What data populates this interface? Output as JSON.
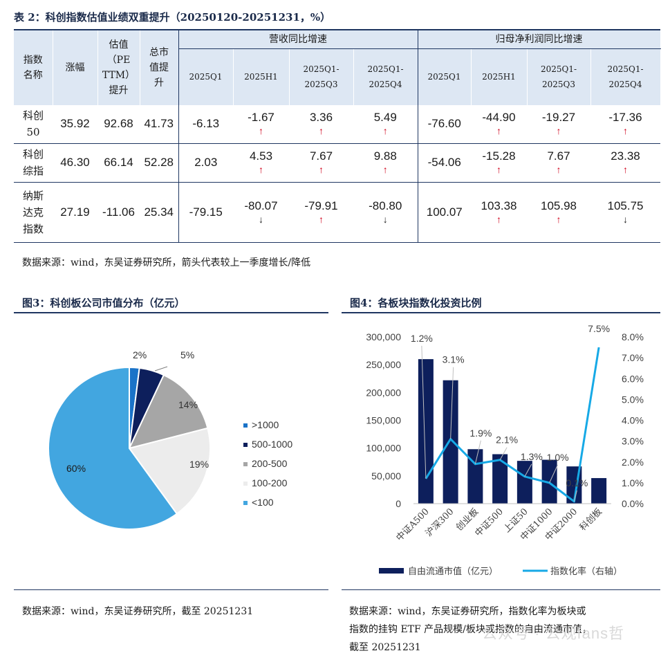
{
  "table": {
    "title": "表 2：科创指数估值业绩双重提升（20250120-20251231，%）",
    "headers": {
      "name": [
        "指数",
        "名称"
      ],
      "change": "涨幅",
      "pe": [
        "估值",
        "（PE",
        "TTM）",
        "提升"
      ],
      "mcap": [
        "总市",
        "值提",
        "升"
      ],
      "revenue_group": "营收同比增速",
      "profit_group": "归母净利润同比增速",
      "sub": [
        [
          "2025Q1"
        ],
        [
          "2025H1"
        ],
        [
          "2025Q1-",
          "2025Q3"
        ],
        [
          "2025Q1-",
          "2025Q4"
        ]
      ]
    },
    "rows": [
      {
        "name": [
          "科创",
          "50"
        ],
        "change": "35.92",
        "pe": "92.68",
        "mcap": "41.73",
        "rev": [
          {
            "v": "-6.13",
            "a": ""
          },
          {
            "v": "-1.67",
            "a": "↑"
          },
          {
            "v": "3.36",
            "a": "↑"
          },
          {
            "v": "5.49",
            "a": "↑"
          }
        ],
        "prof": [
          {
            "v": "-76.60",
            "a": ""
          },
          {
            "v": "-44.90",
            "a": "↑"
          },
          {
            "v": "-19.27",
            "a": "↑"
          },
          {
            "v": "-17.36",
            "a": "↑"
          }
        ]
      },
      {
        "name": [
          "科创",
          "综指"
        ],
        "change": "46.30",
        "pe": "66.14",
        "mcap": "52.28",
        "rev": [
          {
            "v": "2.03",
            "a": ""
          },
          {
            "v": "4.53",
            "a": "↑"
          },
          {
            "v": "7.67",
            "a": "↑"
          },
          {
            "v": "9.88",
            "a": "↑"
          }
        ],
        "prof": [
          {
            "v": "-54.06",
            "a": ""
          },
          {
            "v": "-15.28",
            "a": "↑"
          },
          {
            "v": "7.67",
            "a": "↑"
          },
          {
            "v": "23.38",
            "a": "↑"
          }
        ]
      },
      {
        "name": [
          "纳斯",
          "达克",
          "指数"
        ],
        "change": "27.19",
        "pe": "-11.06",
        "mcap": "25.34",
        "rev": [
          {
            "v": "-79.15",
            "a": ""
          },
          {
            "v": "-80.07",
            "a": "↓"
          },
          {
            "v": "-79.91",
            "a": "↑"
          },
          {
            "v": "-80.80",
            "a": "↓"
          }
        ],
        "prof": [
          {
            "v": "100.07",
            "a": ""
          },
          {
            "v": "103.38",
            "a": "↑"
          },
          {
            "v": "105.98",
            "a": "↑"
          },
          {
            "v": "105.75",
            "a": "↓"
          }
        ]
      }
    ],
    "source": "数据来源：wind，东吴证券研究所，箭头代表较上一季度增长/降低"
  },
  "fig3": {
    "title": "图3：科创板公司市值分布（亿元）",
    "source": "数据来源：wind，东吴证券研究所，截至 20251231"
  },
  "fig4": {
    "title": "图4：各板块指数化投资比例",
    "source_lines": [
      "数据来源：wind，东吴证券研究所，指数化率为板块或",
      "指数的挂钩 ETF 产品规模/板块或指数的自由流通市值，",
      "截至 20251231"
    ]
  },
  "watermark": "公众号 · 公观fans哲",
  "colors": {
    "navy": "#0d1f5c",
    "lightblue": "#3aa0dd",
    "cyan": "#16a9e6",
    "grey": "#a6a6a6",
    "lightgrey": "#ececec",
    "header_bg": "#dde7f3",
    "rule": "#1e3560",
    "up": "#d0021b"
  },
  "chart_data": [
    {
      "type": "pie",
      "labels": [
        ">1000",
        "500-1000",
        "200-500",
        "100-200",
        "<100"
      ],
      "values": [
        2,
        5,
        14,
        19,
        60
      ],
      "value_labels": [
        "2%",
        "5%",
        "14%",
        "19%",
        "60%"
      ],
      "colors": [
        "#1a73c8",
        "#0d1f5c",
        "#a6a6a6",
        "#ececec",
        "#42a6e0"
      ],
      "legend": "right"
    },
    {
      "type": "bar",
      "categories": [
        "中证A500",
        "沪深300",
        "创业板",
        "中证500",
        "上证50",
        "中证1000",
        "中证2000",
        "科创板"
      ],
      "series": [
        {
          "name": "自由流通市值（亿元）",
          "type": "bar",
          "axis": "left",
          "values": [
            260000,
            222000,
            98000,
            89000,
            77000,
            79000,
            67000,
            46000
          ]
        },
        {
          "name": "指数化率（右轴）",
          "type": "line",
          "axis": "right",
          "values": [
            1.2,
            3.1,
            1.9,
            2.1,
            1.3,
            1.0,
            0.1,
            7.5
          ],
          "value_labels": [
            "1.2%",
            "3.1%",
            "1.9%",
            "2.1%",
            "1.3%",
            "1.0%",
            "0.1%",
            "7.5%"
          ]
        }
      ],
      "y_left": {
        "min": 0,
        "max": 300000,
        "ticks": [
          "0",
          "50,000",
          "100,000",
          "150,000",
          "200,000",
          "250,000",
          "300,000"
        ]
      },
      "y_right": {
        "min": 0,
        "max": 8,
        "ticks": [
          "0.0%",
          "1.0%",
          "2.0%",
          "3.0%",
          "4.0%",
          "5.0%",
          "6.0%",
          "7.0%",
          "8.0%"
        ]
      },
      "grid": false,
      "legend": "bottom"
    }
  ]
}
